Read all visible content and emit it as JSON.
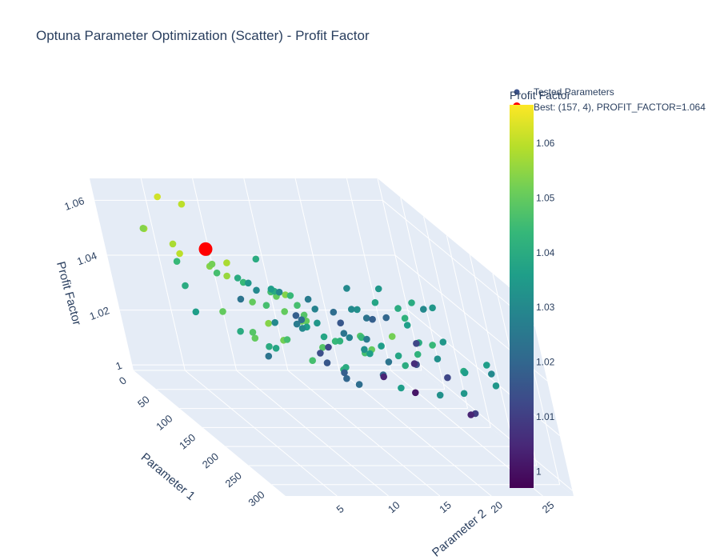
{
  "chart_data": {
    "type": "scatter",
    "title": "Optuna Parameter Optimization (Scatter) - Profit Factor",
    "xlabel": "Parameter 1",
    "ylabel": "Parameter 2",
    "zlabel": "Profit Factor",
    "xlim": [
      0,
      330
    ],
    "ylim": [
      0,
      28
    ],
    "zlim": [
      0.998,
      1.068
    ],
    "x_ticks": [
      0,
      50,
      100,
      150,
      200,
      250,
      300
    ],
    "y_ticks": [
      5,
      10,
      15,
      20,
      25
    ],
    "z_ticks": [
      "1",
      "1.02",
      "1.04",
      "1.06"
    ],
    "z_tick_values": [
      1.0,
      1.02,
      1.04,
      1.06
    ],
    "colorscale": "Viridis",
    "colorbar": {
      "title": "Profit Factor",
      "ticks": [
        "1",
        "1.01",
        "1.02",
        "1.03",
        "1.04",
        "1.05",
        "1.06"
      ],
      "tick_values": [
        1.0,
        1.01,
        1.02,
        1.03,
        1.04,
        1.05,
        1.06
      ],
      "cmin": 0.997,
      "cmax": 1.067
    },
    "legend": {
      "position": "top-right",
      "entries": [
        "Tested Parameters",
        "Best: (157, 4), PROFIT_FACTOR=1.064"
      ]
    },
    "best_point": {
      "name": "Best: (157, 4), PROFIT_FACTOR=1.064",
      "x": 157,
      "y": 4,
      "z": 1.064,
      "color": "#ff0000"
    },
    "series": [
      {
        "name": "Tested Parameters",
        "points": [
          [
            60,
            22,
            1.004
          ],
          [
            80,
            24,
            1.001
          ],
          [
            40,
            26,
            1.006
          ],
          [
            30,
            27,
            1.012
          ],
          [
            100,
            24,
            1.014
          ],
          [
            120,
            26,
            1.012
          ],
          [
            160,
            26,
            1.004
          ],
          [
            200,
            25,
            1.01
          ],
          [
            240,
            26,
            1.03
          ],
          [
            260,
            25,
            1.036
          ],
          [
            300,
            24,
            1.034
          ],
          [
            280,
            22,
            1.036
          ],
          [
            320,
            20,
            1.034
          ],
          [
            310,
            18,
            1.032
          ],
          [
            230,
            20,
            1.04
          ],
          [
            180,
            21,
            1.042
          ],
          [
            140,
            22,
            1.04
          ],
          [
            110,
            21,
            1.038
          ],
          [
            70,
            20,
            1.03
          ],
          [
            50,
            22,
            1.024
          ],
          [
            20,
            25,
            1.02
          ],
          [
            10,
            24,
            1.018
          ],
          [
            90,
            18,
            1.024
          ],
          [
            130,
            17,
            1.028
          ],
          [
            170,
            18,
            1.02
          ],
          [
            210,
            17,
            1.036
          ],
          [
            250,
            17,
            1.038
          ],
          [
            290,
            16,
            1.04
          ],
          [
            320,
            14,
            1.036
          ],
          [
            300,
            12,
            1.046
          ],
          [
            270,
            13,
            1.048
          ],
          [
            240,
            12,
            1.042
          ],
          [
            200,
            12,
            1.038
          ],
          [
            160,
            12,
            1.036
          ],
          [
            120,
            13,
            1.03
          ],
          [
            80,
            14,
            1.026
          ],
          [
            40,
            16,
            1.022
          ],
          [
            20,
            20,
            1.022
          ],
          [
            30,
            12,
            1.034
          ],
          [
            60,
            10,
            1.04
          ],
          [
            100,
            9,
            1.044
          ],
          [
            140,
            10,
            1.046
          ],
          [
            180,
            9,
            1.05
          ],
          [
            220,
            8,
            1.05
          ],
          [
            260,
            8,
            1.052
          ],
          [
            300,
            8,
            1.048
          ],
          [
            320,
            6,
            1.046
          ],
          [
            310,
            4,
            1.052
          ],
          [
            280,
            4,
            1.054
          ],
          [
            240,
            5,
            1.04
          ],
          [
            200,
            4,
            1.04
          ],
          [
            170,
            5,
            1.056
          ],
          [
            150,
            6,
            1.058
          ],
          [
            130,
            5,
            1.054
          ],
          [
            110,
            6,
            1.052
          ],
          [
            90,
            7,
            1.046
          ],
          [
            50,
            8,
            1.048
          ],
          [
            20,
            9,
            1.044
          ],
          [
            10,
            14,
            1.04
          ],
          [
            45,
            5,
            1.044
          ],
          [
            80,
            4,
            1.04
          ],
          [
            120,
            3,
            1.036
          ],
          [
            220,
            2,
            1.05
          ],
          [
            260,
            3,
            1.048
          ],
          [
            290,
            2,
            1.05
          ],
          [
            180,
            14,
            1.02
          ],
          [
            210,
            14,
            1.022
          ],
          [
            150,
            15,
            1.018
          ],
          [
            110,
            15,
            1.016
          ],
          [
            70,
            16,
            1.014
          ],
          [
            40,
            18,
            1.012
          ],
          [
            15,
            18,
            1.026
          ],
          [
            25,
            15,
            1.03
          ],
          [
            60,
            13,
            1.036
          ],
          [
            95,
            12,
            1.04
          ],
          [
            135,
            12,
            1.044
          ],
          [
            175,
            11,
            1.046
          ],
          [
            215,
            10,
            1.048
          ],
          [
            255,
            11,
            1.044
          ],
          [
            295,
            10,
            1.04
          ],
          [
            315,
            9,
            1.042
          ],
          [
            5,
            6,
            1.062
          ],
          [
            10,
            8,
            1.06
          ],
          [
            140,
            2,
            1.06
          ],
          [
            100,
            3,
            1.058
          ],
          [
            60,
            2,
            1.058
          ],
          [
            30,
            3,
            1.054
          ],
          [
            195,
            6,
            1.05
          ],
          [
            230,
            6,
            1.038
          ],
          [
            265,
            6,
            1.046
          ],
          [
            150,
            8,
            1.024
          ],
          [
            190,
            16,
            1.032
          ],
          [
            120,
            19,
            1.026
          ],
          [
            85,
            20,
            1.032
          ],
          [
            55,
            17,
            1.028
          ],
          [
            20,
            13,
            1.03
          ],
          [
            0,
            17,
            1.018
          ],
          [
            0,
            12,
            1.024
          ],
          [
            5,
            21,
            1.016
          ],
          [
            165,
            19,
            1.024
          ],
          [
            135,
            14,
            1.034
          ],
          [
            105,
            11,
            1.03
          ],
          [
            245,
            14,
            1.044
          ],
          [
            275,
            18,
            1.042
          ],
          [
            305,
            21,
            1.04
          ],
          [
            215,
            22,
            1.032
          ],
          [
            185,
            24,
            1.034
          ],
          [
            155,
            22,
            1.036
          ],
          [
            125,
            24,
            1.04
          ],
          [
            95,
            27,
            1.034
          ],
          [
            70,
            27,
            1.03
          ],
          [
            45,
            24,
            1.034
          ],
          [
            15,
            22,
            1.03
          ],
          [
            230,
            15,
            1.036
          ],
          [
            265,
            20,
            1.044
          ],
          [
            300,
            15,
            1.052
          ],
          [
            320,
            12,
            1.05
          ],
          [
            175,
            8,
            1.046
          ],
          [
            205,
            9,
            1.054
          ],
          [
            245,
            9,
            1.05
          ]
        ]
      }
    ]
  }
}
